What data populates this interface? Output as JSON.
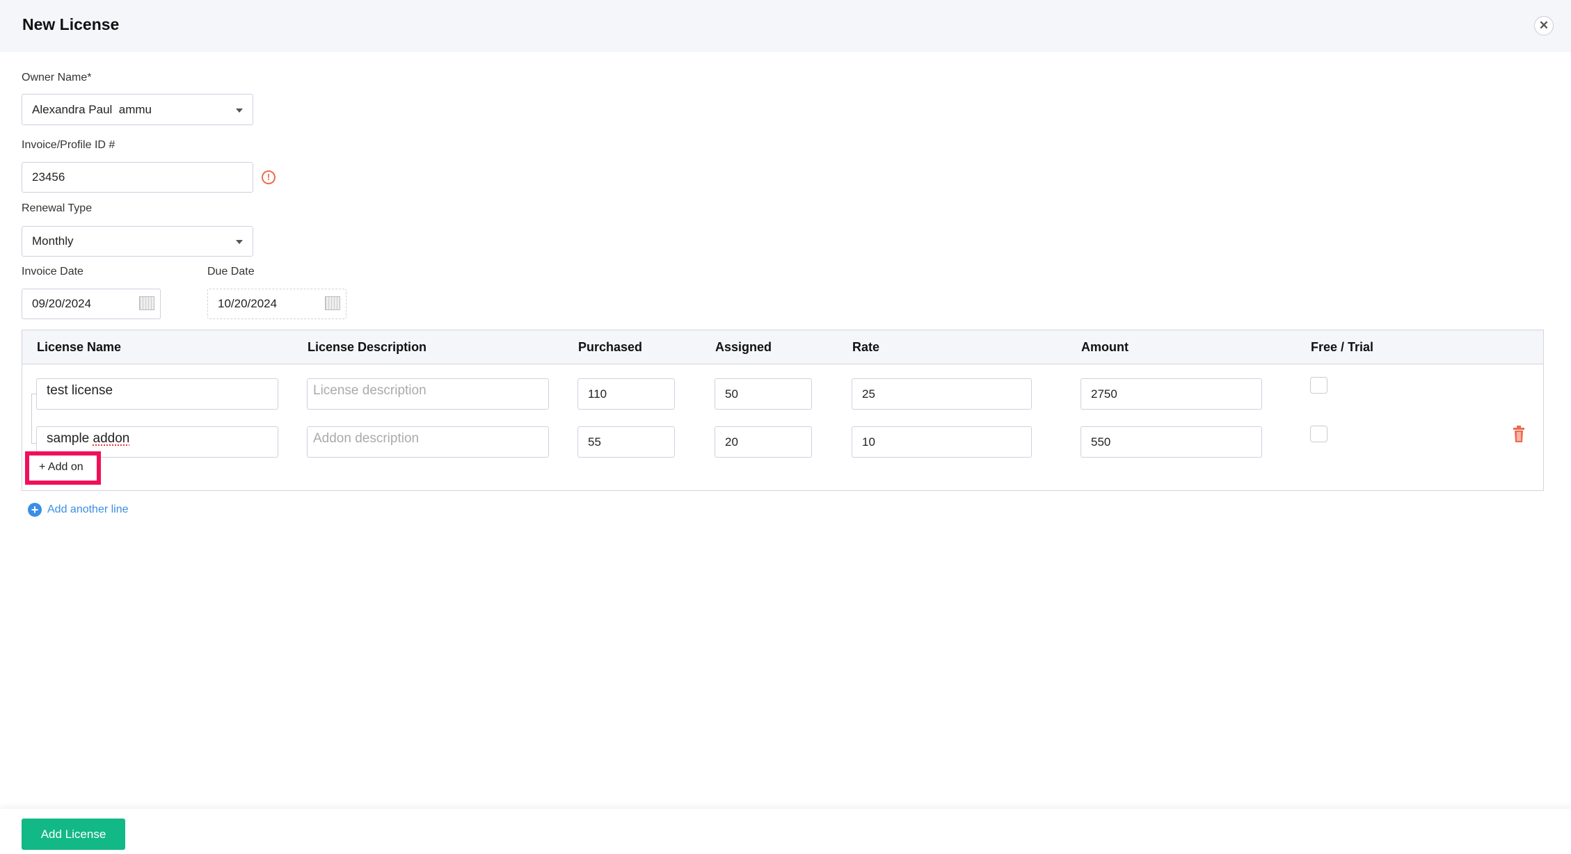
{
  "header": {
    "title": "New License"
  },
  "form": {
    "owner": {
      "label": "Owner Name*",
      "value": "Alexandra Paul  ammu"
    },
    "invoice_id": {
      "label": "Invoice/Profile ID #",
      "value": "23456"
    },
    "renewal": {
      "label": "Renewal Type",
      "value": "Monthly"
    },
    "invoice_date": {
      "label": "Invoice Date",
      "value": "09/20/2024"
    },
    "due_date": {
      "label": "Due Date",
      "value": "10/20/2024"
    }
  },
  "table": {
    "headers": [
      "License Name",
      "License Description",
      "Purchased",
      "Assigned",
      "Rate",
      "Amount",
      "Free / Trial"
    ],
    "rows": [
      {
        "name": "test license",
        "description_placeholder": "License description",
        "purchased": "110",
        "assigned": "50",
        "rate": "25",
        "amount": "2750",
        "free_trial": false
      },
      {
        "name_part1": "sample ",
        "name_part2": "addon",
        "description_placeholder": "Addon description",
        "purchased": "55",
        "assigned": "20",
        "rate": "10",
        "amount": "550",
        "free_trial": false
      }
    ],
    "add_on": "+ Add on"
  },
  "add_line": "Add another line",
  "footer": {
    "submit": "Add License"
  },
  "colors": {
    "accent": "#12b886",
    "link": "#3a8ee6",
    "danger": "#ee6a4d",
    "highlight": "#f0105a"
  }
}
